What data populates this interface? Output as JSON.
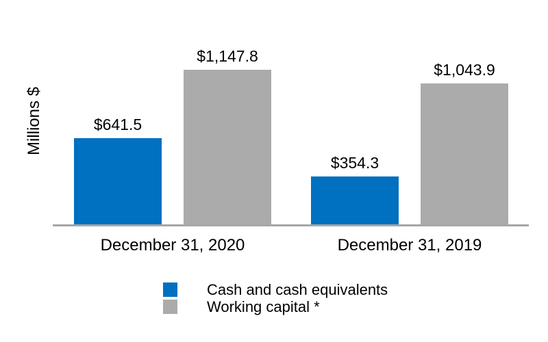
{
  "chart_data": {
    "type": "bar",
    "ylabel": "Millions $",
    "categories": [
      "December 31, 2020",
      "December 31, 2019"
    ],
    "series": [
      {
        "name": "Cash and cash equivalents",
        "color": "#0070C0",
        "values": [
          641.5,
          354.3
        ],
        "data_labels": [
          "$641.5",
          "$354.3"
        ]
      },
      {
        "name": "Working capital *",
        "color": "#ABABAB",
        "values": [
          1147.8,
          1043.9
        ],
        "data_labels": [
          "$1,147.8",
          "$1,043.9"
        ]
      }
    ],
    "legend_position": "bottom",
    "grid": false,
    "colors": {
      "axis_line": "#A6A6A6",
      "text": "#000000",
      "background": "#FFFFFF"
    }
  }
}
